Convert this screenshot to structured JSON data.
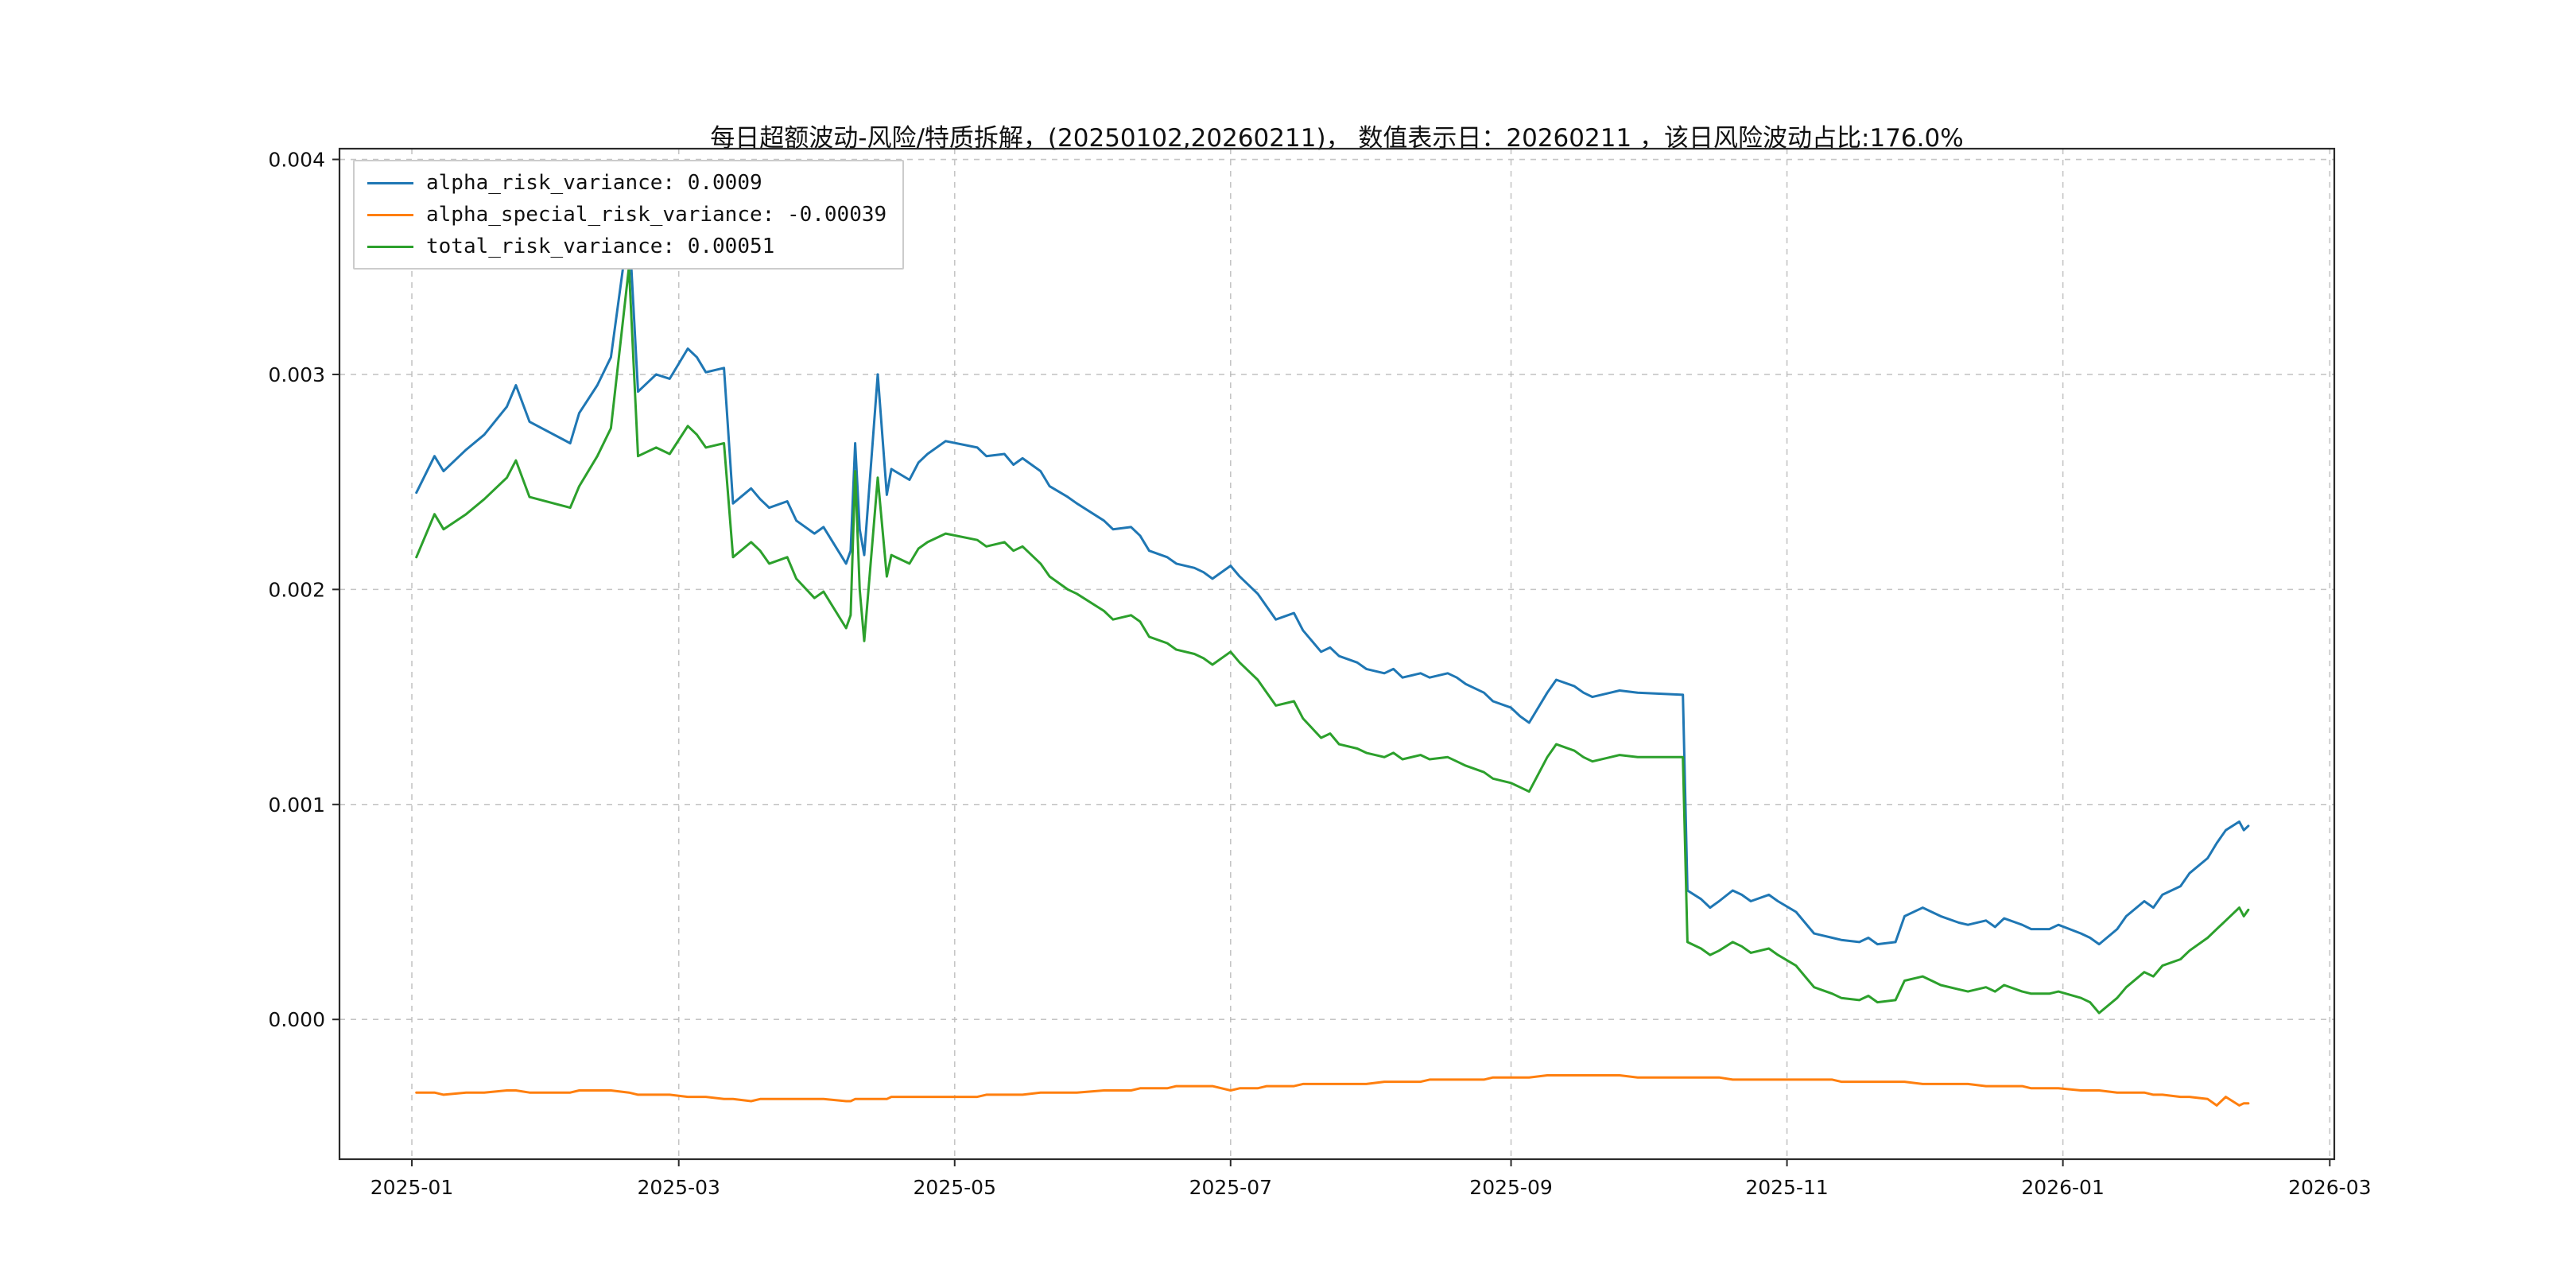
{
  "chart_data": {
    "type": "line",
    "title": "每日超额波动-风险/特质拆解，(20250102,20260211)， 数值表示日：20260211 ，该日风险波动占比:176.0%",
    "grid": true,
    "legend_position": "upper-left",
    "xlim": [
      "2024-12-16",
      "2026-03-02"
    ],
    "ylim": [
      -0.00065,
      0.00405
    ],
    "x_ticks": [
      {
        "label": "2025-01",
        "date": "2025-01-01"
      },
      {
        "label": "2025-03",
        "date": "2025-03-01"
      },
      {
        "label": "2025-05",
        "date": "2025-05-01"
      },
      {
        "label": "2025-07",
        "date": "2025-07-01"
      },
      {
        "label": "2025-09",
        "date": "2025-09-01"
      },
      {
        "label": "2025-11",
        "date": "2025-11-01"
      },
      {
        "label": "2026-01",
        "date": "2026-01-01"
      },
      {
        "label": "2026-03",
        "date": "2026-03-01"
      }
    ],
    "y_ticks": [
      {
        "label": "0.000",
        "value": 0.0
      },
      {
        "label": "0.001",
        "value": 0.001
      },
      {
        "label": "0.002",
        "value": 0.002
      },
      {
        "label": "0.003",
        "value": 0.003
      },
      {
        "label": "0.004",
        "value": 0.004
      }
    ],
    "x": [
      "2025-01-02",
      "2025-01-06",
      "2025-01-08",
      "2025-01-13",
      "2025-01-17",
      "2025-01-22",
      "2025-01-24",
      "2025-01-27",
      "2025-02-05",
      "2025-02-07",
      "2025-02-11",
      "2025-02-14",
      "2025-02-18",
      "2025-02-20",
      "2025-02-24",
      "2025-02-27",
      "2025-03-03",
      "2025-03-05",
      "2025-03-07",
      "2025-03-11",
      "2025-03-13",
      "2025-03-17",
      "2025-03-19",
      "2025-03-21",
      "2025-03-25",
      "2025-03-27",
      "2025-03-31",
      "2025-04-02",
      "2025-04-07",
      "2025-04-08",
      "2025-04-09",
      "2025-04-10",
      "2025-04-11",
      "2025-04-14",
      "2025-04-16",
      "2025-04-17",
      "2025-04-21",
      "2025-04-23",
      "2025-04-25",
      "2025-04-29",
      "2025-05-06",
      "2025-05-08",
      "2025-05-12",
      "2025-05-14",
      "2025-05-16",
      "2025-05-20",
      "2025-05-22",
      "2025-05-26",
      "2025-05-28",
      "2025-06-03",
      "2025-06-05",
      "2025-06-09",
      "2025-06-11",
      "2025-06-13",
      "2025-06-17",
      "2025-06-19",
      "2025-06-23",
      "2025-06-25",
      "2025-06-27",
      "2025-07-01",
      "2025-07-03",
      "2025-07-07",
      "2025-07-09",
      "2025-07-11",
      "2025-07-15",
      "2025-07-17",
      "2025-07-21",
      "2025-07-23",
      "2025-07-25",
      "2025-07-29",
      "2025-07-31",
      "2025-08-04",
      "2025-08-06",
      "2025-08-08",
      "2025-08-12",
      "2025-08-14",
      "2025-08-18",
      "2025-08-20",
      "2025-08-22",
      "2025-08-26",
      "2025-08-28",
      "2025-09-01",
      "2025-09-03",
      "2025-09-05",
      "2025-09-09",
      "2025-09-11",
      "2025-09-15",
      "2025-09-17",
      "2025-09-19",
      "2025-09-23",
      "2025-09-25",
      "2025-09-29",
      "2025-10-09",
      "2025-10-10",
      "2025-10-13",
      "2025-10-15",
      "2025-10-17",
      "2025-10-20",
      "2025-10-22",
      "2025-10-24",
      "2025-10-28",
      "2025-10-30",
      "2025-11-03",
      "2025-11-05",
      "2025-11-07",
      "2025-11-11",
      "2025-11-13",
      "2025-11-17",
      "2025-11-19",
      "2025-11-21",
      "2025-11-25",
      "2025-11-27",
      "2025-12-01",
      "2025-12-03",
      "2025-12-05",
      "2025-12-09",
      "2025-12-11",
      "2025-12-15",
      "2025-12-17",
      "2025-12-19",
      "2025-12-23",
      "2025-12-25",
      "2025-12-29",
      "2025-12-31",
      "2026-01-05",
      "2026-01-07",
      "2026-01-09",
      "2026-01-13",
      "2026-01-15",
      "2026-01-19",
      "2026-01-21",
      "2026-01-23",
      "2026-01-27",
      "2026-01-29",
      "2026-02-02",
      "2026-02-04",
      "2026-02-06",
      "2026-02-09",
      "2026-02-10",
      "2026-02-11"
    ],
    "series": [
      {
        "name": "alpha_risk_variance",
        "legend_label": "alpha_risk_variance: 0.0009",
        "latest_value": 0.0009,
        "color": "#1f77b4",
        "values": [
          0.00245,
          0.00262,
          0.00255,
          0.00265,
          0.00272,
          0.00285,
          0.00295,
          0.00278,
          0.00268,
          0.00282,
          0.00295,
          0.00308,
          0.0037,
          0.00292,
          0.003,
          0.00298,
          0.00312,
          0.00308,
          0.00301,
          0.00303,
          0.0024,
          0.00247,
          0.00242,
          0.00238,
          0.00241,
          0.00232,
          0.00226,
          0.00229,
          0.00212,
          0.00218,
          0.00268,
          0.00228,
          0.00216,
          0.003,
          0.00244,
          0.00256,
          0.00251,
          0.00259,
          0.00263,
          0.00269,
          0.00266,
          0.00262,
          0.00263,
          0.00258,
          0.00261,
          0.00255,
          0.00248,
          0.00243,
          0.0024,
          0.00232,
          0.00228,
          0.00229,
          0.00225,
          0.00218,
          0.00215,
          0.00212,
          0.0021,
          0.00208,
          0.00205,
          0.00211,
          0.00206,
          0.00198,
          0.00192,
          0.00186,
          0.00189,
          0.00181,
          0.00171,
          0.00173,
          0.00169,
          0.00166,
          0.00163,
          0.00161,
          0.00163,
          0.00159,
          0.00161,
          0.00159,
          0.00161,
          0.00159,
          0.00156,
          0.00152,
          0.00148,
          0.00145,
          0.00141,
          0.00138,
          0.00152,
          0.00158,
          0.00155,
          0.00152,
          0.0015,
          0.00152,
          0.00153,
          0.00152,
          0.00151,
          0.0006,
          0.00056,
          0.00052,
          0.00055,
          0.0006,
          0.00058,
          0.00055,
          0.00058,
          0.00055,
          0.0005,
          0.00045,
          0.0004,
          0.00038,
          0.00037,
          0.00036,
          0.00038,
          0.00035,
          0.00036,
          0.00048,
          0.00052,
          0.0005,
          0.00048,
          0.00045,
          0.00044,
          0.00046,
          0.00043,
          0.00047,
          0.00044,
          0.00042,
          0.00042,
          0.00044,
          0.0004,
          0.00038,
          0.00035,
          0.00042,
          0.00048,
          0.00055,
          0.00052,
          0.00058,
          0.00062,
          0.00068,
          0.00075,
          0.00082,
          0.00088,
          0.00092,
          0.00088,
          0.0009
        ]
      },
      {
        "name": "alpha_special_risk_variance",
        "legend_label": "alpha_special_risk_variance: -0.00039",
        "latest_value": -0.00039,
        "color": "#ff7f0e",
        "values": [
          -0.00034,
          -0.00034,
          -0.00035,
          -0.00034,
          -0.00034,
          -0.00033,
          -0.00033,
          -0.00034,
          -0.00034,
          -0.00033,
          -0.00033,
          -0.00033,
          -0.00034,
          -0.00035,
          -0.00035,
          -0.00035,
          -0.00036,
          -0.00036,
          -0.00036,
          -0.00037,
          -0.00037,
          -0.00038,
          -0.00037,
          -0.00037,
          -0.00037,
          -0.00037,
          -0.00037,
          -0.00037,
          -0.00038,
          -0.00038,
          -0.00037,
          -0.00037,
          -0.00037,
          -0.00037,
          -0.00037,
          -0.00036,
          -0.00036,
          -0.00036,
          -0.00036,
          -0.00036,
          -0.00036,
          -0.00035,
          -0.00035,
          -0.00035,
          -0.00035,
          -0.00034,
          -0.00034,
          -0.00034,
          -0.00034,
          -0.00033,
          -0.00033,
          -0.00033,
          -0.00032,
          -0.00032,
          -0.00032,
          -0.00031,
          -0.00031,
          -0.00031,
          -0.00031,
          -0.00033,
          -0.00032,
          -0.00032,
          -0.00031,
          -0.00031,
          -0.00031,
          -0.0003,
          -0.0003,
          -0.0003,
          -0.0003,
          -0.0003,
          -0.0003,
          -0.00029,
          -0.00029,
          -0.00029,
          -0.00029,
          -0.00028,
          -0.00028,
          -0.00028,
          -0.00028,
          -0.00028,
          -0.00027,
          -0.00027,
          -0.00027,
          -0.00027,
          -0.00026,
          -0.00026,
          -0.00026,
          -0.00026,
          -0.00026,
          -0.00026,
          -0.00026,
          -0.00027,
          -0.00027,
          -0.00027,
          -0.00027,
          -0.00027,
          -0.00027,
          -0.00028,
          -0.00028,
          -0.00028,
          -0.00028,
          -0.00028,
          -0.00028,
          -0.00028,
          -0.00028,
          -0.00028,
          -0.00029,
          -0.00029,
          -0.00029,
          -0.00029,
          -0.00029,
          -0.00029,
          -0.0003,
          -0.0003,
          -0.0003,
          -0.0003,
          -0.0003,
          -0.00031,
          -0.00031,
          -0.00031,
          -0.00031,
          -0.00032,
          -0.00032,
          -0.00032,
          -0.00033,
          -0.00033,
          -0.00033,
          -0.00034,
          -0.00034,
          -0.00034,
          -0.00035,
          -0.00035,
          -0.00036,
          -0.00036,
          -0.00037,
          -0.0004,
          -0.00036,
          -0.0004,
          -0.00039,
          -0.00039
        ]
      },
      {
        "name": "total_risk_variance",
        "legend_label": "total_risk_variance: 0.00051",
        "latest_value": 0.00051,
        "color": "#2ca02c",
        "values": [
          0.00215,
          0.00235,
          0.00228,
          0.00235,
          0.00242,
          0.00252,
          0.0026,
          0.00243,
          0.00238,
          0.00248,
          0.00262,
          0.00275,
          0.0035,
          0.00262,
          0.00266,
          0.00263,
          0.00276,
          0.00272,
          0.00266,
          0.00268,
          0.00215,
          0.00222,
          0.00218,
          0.00212,
          0.00215,
          0.00205,
          0.00196,
          0.00199,
          0.00182,
          0.00188,
          0.00255,
          0.002,
          0.00176,
          0.00252,
          0.00206,
          0.00216,
          0.00212,
          0.00219,
          0.00222,
          0.00226,
          0.00223,
          0.0022,
          0.00222,
          0.00218,
          0.0022,
          0.00212,
          0.00206,
          0.002,
          0.00198,
          0.0019,
          0.00186,
          0.00188,
          0.00185,
          0.00178,
          0.00175,
          0.00172,
          0.0017,
          0.00168,
          0.00165,
          0.00171,
          0.00166,
          0.00158,
          0.00152,
          0.00146,
          0.00148,
          0.0014,
          0.00131,
          0.00133,
          0.00128,
          0.00126,
          0.00124,
          0.00122,
          0.00124,
          0.00121,
          0.00123,
          0.00121,
          0.00122,
          0.0012,
          0.00118,
          0.00115,
          0.00112,
          0.0011,
          0.00108,
          0.00106,
          0.00122,
          0.00128,
          0.00125,
          0.00122,
          0.0012,
          0.00122,
          0.00123,
          0.00122,
          0.00122,
          0.00036,
          0.00033,
          0.0003,
          0.00032,
          0.00036,
          0.00034,
          0.00031,
          0.00033,
          0.0003,
          0.00025,
          0.0002,
          0.00015,
          0.00012,
          0.0001,
          9e-05,
          0.00011,
          8e-05,
          9e-05,
          0.00018,
          0.0002,
          0.00018,
          0.00016,
          0.00014,
          0.00013,
          0.00015,
          0.00013,
          0.00016,
          0.00013,
          0.00012,
          0.00012,
          0.00013,
          0.0001,
          8e-05,
          3e-05,
          0.0001,
          0.00015,
          0.00022,
          0.0002,
          0.00025,
          0.00028,
          0.00032,
          0.00038,
          0.00042,
          0.00046,
          0.00052,
          0.00048,
          0.00051
        ]
      }
    ],
    "style": {
      "grid_color": "#bbbbbb",
      "frame_color": "#2a2a2a",
      "background": "#ffffff"
    }
  }
}
